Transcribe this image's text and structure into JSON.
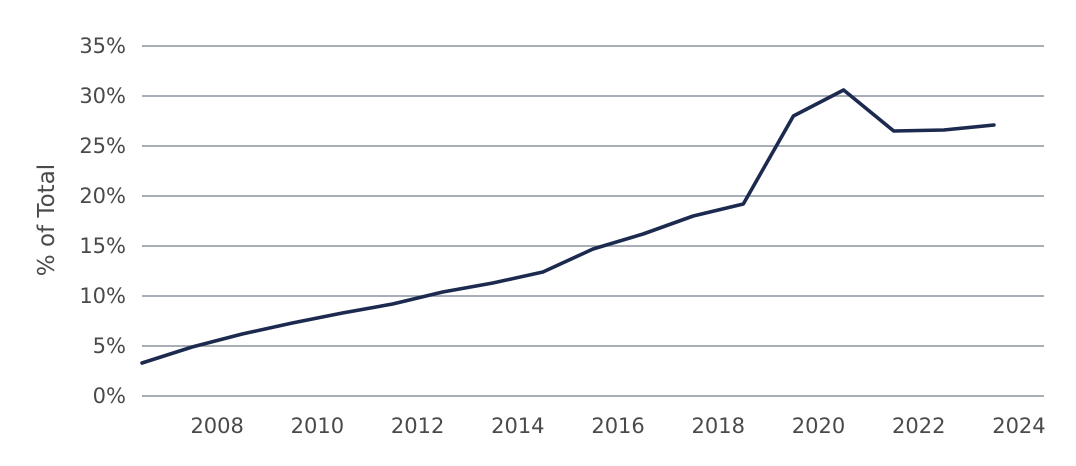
{
  "chart_data": {
    "type": "line",
    "title": "",
    "xlabel": "",
    "ylabel": "% of Total",
    "x": [
      2006.5,
      2007.5,
      2008.5,
      2009.5,
      2010.5,
      2011.5,
      2012.5,
      2013.5,
      2014.5,
      2015.5,
      2016.5,
      2017.5,
      2018.5,
      2019.5,
      2020.5,
      2021.5,
      2022.5,
      2023.5
    ],
    "series": [
      {
        "values": [
          3.3,
          4.9,
          6.2,
          7.3,
          8.3,
          9.2,
          10.4,
          11.3,
          12.4,
          14.7,
          16.2,
          18.0,
          19.2,
          28.0,
          30.6,
          26.5,
          26.6,
          27.1
        ],
        "color": "#1b2a4e"
      }
    ],
    "xlim": [
      2006.5,
      2024.5
    ],
    "ylim": [
      0,
      35
    ],
    "x_ticks": [
      2008,
      2010,
      2012,
      2014,
      2016,
      2018,
      2020,
      2022,
      2024
    ],
    "x_tick_labels": [
      "2008",
      "2010",
      "2012",
      "2014",
      "2016",
      "2018",
      "2020",
      "2022",
      "2024"
    ],
    "y_ticks": [
      0,
      5,
      10,
      15,
      20,
      25,
      30,
      35
    ],
    "y_tick_labels": [
      "0%",
      "5%",
      "10%",
      "15%",
      "20%",
      "25%",
      "30%",
      "35%"
    ],
    "grid": true,
    "legend": "none"
  }
}
